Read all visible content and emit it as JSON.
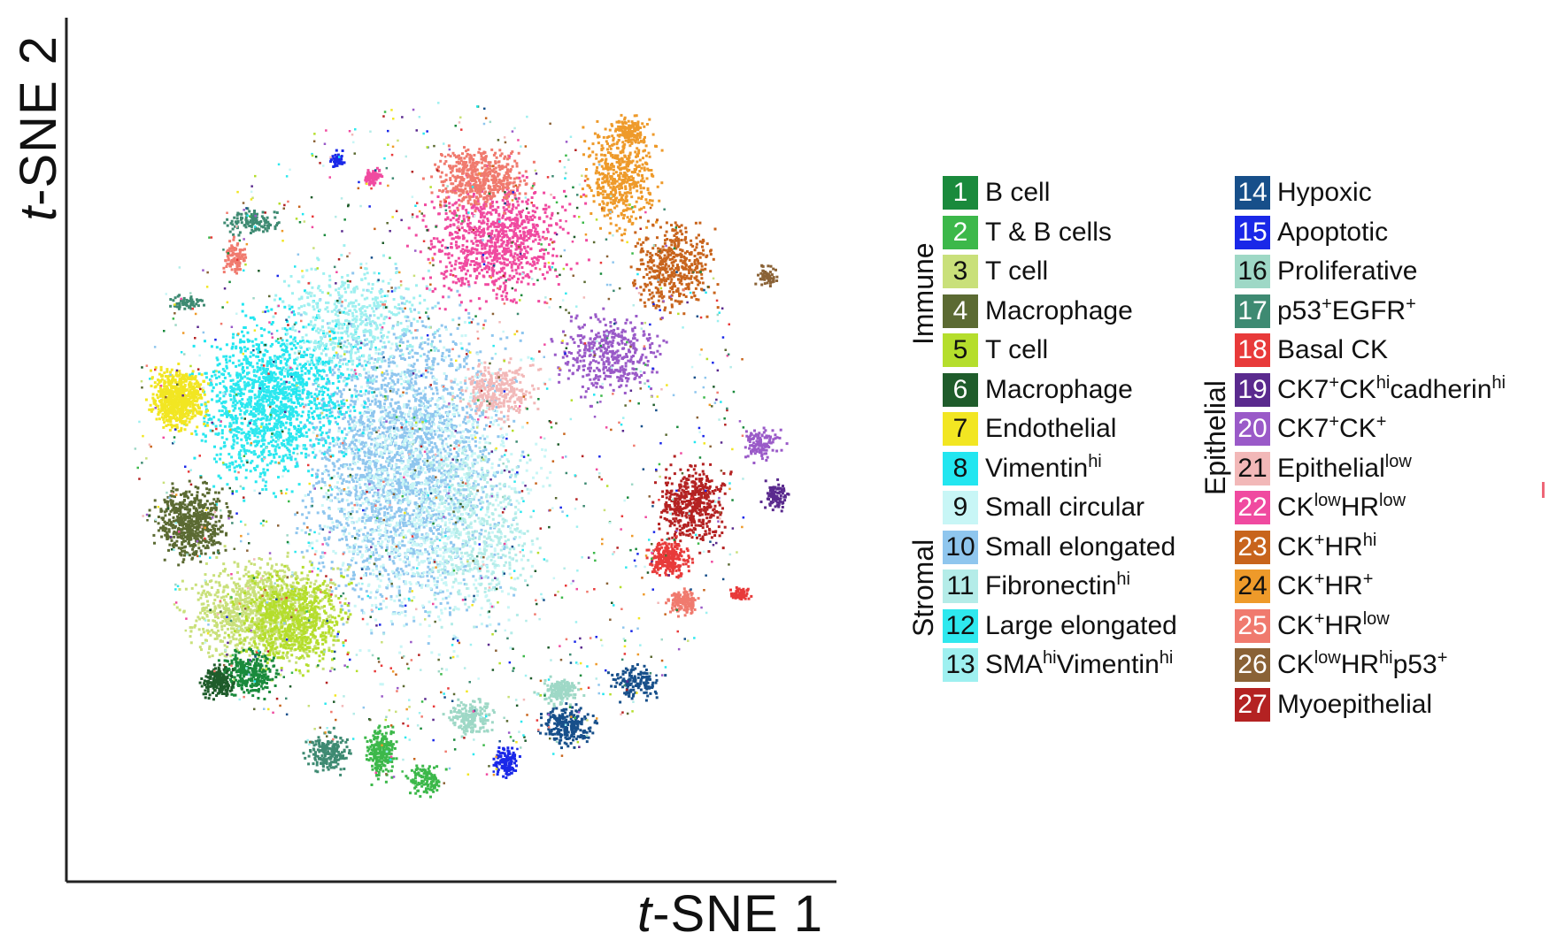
{
  "chart_data": {
    "type": "scatter",
    "xlabel": "t-SNE 1",
    "ylabel": "t-SNE 2",
    "grid": false,
    "legend_position": "right",
    "legend_groups": [
      {
        "name": "Immune",
        "items": [
          1,
          2,
          3,
          4,
          5,
          6
        ]
      },
      {
        "name": "Stromal",
        "items": [
          7,
          8,
          9,
          10,
          11,
          12,
          13
        ]
      },
      {
        "name": "Epithelial",
        "items": [
          14,
          15,
          16,
          17,
          18,
          19,
          20,
          21,
          22,
          23,
          24,
          25,
          26,
          27
        ]
      }
    ],
    "legend": [
      {
        "id": "1",
        "label": "B cell",
        "color": "#1a8a3c"
      },
      {
        "id": "2",
        "label": "T & B cells",
        "color": "#3cb84a"
      },
      {
        "id": "3",
        "label": "T cell",
        "color": "#c9e07a"
      },
      {
        "id": "4",
        "label": "Macrophage",
        "color": "#5b6a32"
      },
      {
        "id": "5",
        "label": "T cell",
        "color": "#b5de2c"
      },
      {
        "id": "6",
        "label": "Macrophage",
        "color": "#1f5c2b"
      },
      {
        "id": "7",
        "label": "Endothelial",
        "color": "#f2e622"
      },
      {
        "id": "8",
        "label": "Vimentin^hi",
        "color": "#22e6f0"
      },
      {
        "id": "9",
        "label": "Small circular",
        "color": "#c8f6f6"
      },
      {
        "id": "10",
        "label": "Small elongated",
        "color": "#8fc6ee"
      },
      {
        "id": "11",
        "label": "Fibronectin^hi",
        "color": "#b4ece8"
      },
      {
        "id": "12",
        "label": "Large elongated",
        "color": "#2ee8ee"
      },
      {
        "id": "13",
        "label": "SMA^hi Vimentin^hi",
        "color": "#9ef0f0"
      },
      {
        "id": "14",
        "label": "Hypoxic",
        "color": "#174f8a"
      },
      {
        "id": "15",
        "label": "Apoptotic",
        "color": "#1a28e8"
      },
      {
        "id": "16",
        "label": "Proliferative",
        "color": "#9ed8c6"
      },
      {
        "id": "17",
        "label": "p53^+ EGFR^+",
        "color": "#3e8a72"
      },
      {
        "id": "18",
        "label": "Basal CK",
        "color": "#e83a3a"
      },
      {
        "id": "19",
        "label": "CK7^+ CK^hi cadherin^hi",
        "color": "#5a2a8e"
      },
      {
        "id": "20",
        "label": "CK7^+ CK^+",
        "color": "#9a5ac8"
      },
      {
        "id": "21",
        "label": "Epithelial^low",
        "color": "#f2b8b8"
      },
      {
        "id": "22",
        "label": "CK^low HR^low",
        "color": "#f04aa0"
      },
      {
        "id": "23",
        "label": "CK^+ HR^hi",
        "color": "#c8641c"
      },
      {
        "id": "24",
        "label": "CK^+ HR^+",
        "color": "#ee9a2a"
      },
      {
        "id": "25",
        "label": "CK^+ HR^low",
        "color": "#f07a6e"
      },
      {
        "id": "26",
        "label": "CK^low HR^hi p53^+",
        "color": "#8a6236"
      },
      {
        "id": "27",
        "label": "Myoepithelial",
        "color": "#b42222"
      }
    ]
  }
}
